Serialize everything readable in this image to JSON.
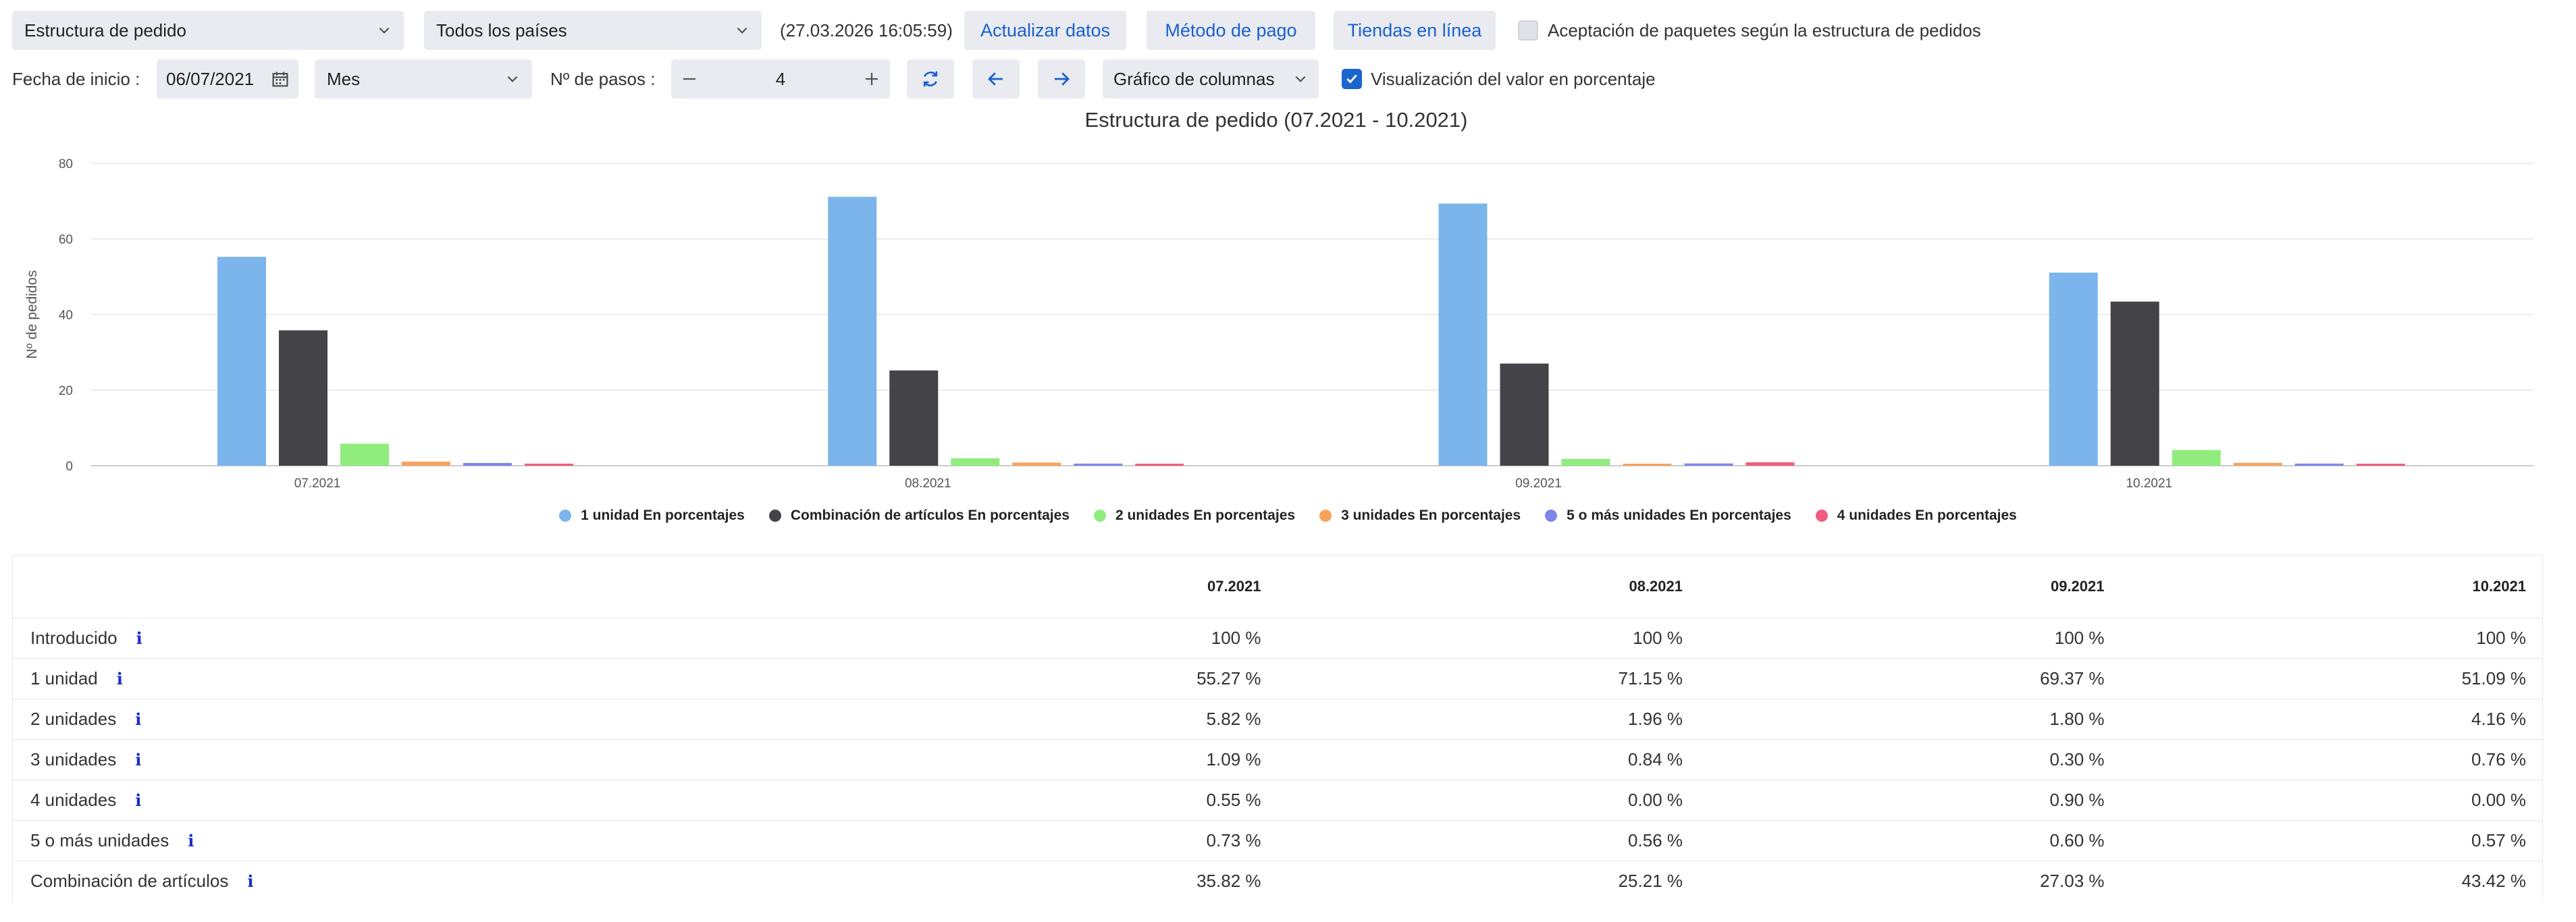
{
  "toolbar": {
    "report_select": "Estructura de pedido",
    "country_select": "Todos los países",
    "timestamp": "(27.03.2026 16:05:59)",
    "refresh_label": "Actualizar datos",
    "payment_label": "Método de pago",
    "shops_label": "Tiendas en línea",
    "package_acceptance_label": "Aceptación de paquetes según la estructura de pedidos",
    "package_acceptance_checked": false
  },
  "filters": {
    "start_date_label": "Fecha de inicio :",
    "start_date_value": "06/07/2021",
    "period_select": "Mes",
    "steps_label": "Nº de pasos :",
    "steps_value": "4",
    "chart_type_select": "Gráfico de columnas",
    "percent_view_label": "Visualización del valor en porcentaje",
    "percent_view_checked": true
  },
  "colors": {
    "blue": "#7cb5ec",
    "dark": "#434348",
    "green": "#90ed7d",
    "orange": "#f7a35c",
    "purple": "#8085e9",
    "pink": "#f15c80",
    "accent": "#1a5fd0"
  },
  "chart_data": {
    "type": "bar",
    "title": "Estructura de pedido (07.2021 - 10.2021)",
    "ylabel": "Nº de pedidos",
    "xlabel": "",
    "ylim": [
      0,
      80
    ],
    "yticks": [
      0,
      20,
      40,
      60,
      80
    ],
    "categories": [
      "07.2021",
      "08.2021",
      "09.2021",
      "10.2021"
    ],
    "series": [
      {
        "name": "1 unidad En porcentajes",
        "color": "#7cb5ec",
        "values": [
          55.27,
          71.15,
          69.37,
          51.09
        ]
      },
      {
        "name": "Combinación de artículos En porcentajes",
        "color": "#434348",
        "values": [
          35.82,
          25.21,
          27.03,
          43.42
        ]
      },
      {
        "name": "2 unidades En porcentajes",
        "color": "#90ed7d",
        "values": [
          5.82,
          1.96,
          1.8,
          4.16
        ]
      },
      {
        "name": "3 unidades En porcentajes",
        "color": "#f7a35c",
        "values": [
          1.09,
          0.84,
          0.3,
          0.76
        ]
      },
      {
        "name": "5 o más unidades En porcentajes",
        "color": "#8085e9",
        "values": [
          0.73,
          0.56,
          0.6,
          0.57
        ]
      },
      {
        "name": "4 unidades En porcentajes",
        "color": "#f15c80",
        "values": [
          0.55,
          0.0,
          0.9,
          0.0
        ]
      }
    ]
  },
  "table": {
    "headers": [
      "",
      "07.2021",
      "08.2021",
      "09.2021",
      "10.2021"
    ],
    "rows": [
      {
        "label": "Introducido",
        "values": [
          "100 %",
          "100 %",
          "100 %",
          "100 %"
        ]
      },
      {
        "label": "1 unidad",
        "values": [
          "55.27 %",
          "71.15 %",
          "69.37 %",
          "51.09 %"
        ]
      },
      {
        "label": "2 unidades",
        "values": [
          "5.82 %",
          "1.96 %",
          "1.80 %",
          "4.16 %"
        ]
      },
      {
        "label": "3 unidades",
        "values": [
          "1.09 %",
          "0.84 %",
          "0.30 %",
          "0.76 %"
        ]
      },
      {
        "label": "4 unidades",
        "values": [
          "0.55 %",
          "0.00 %",
          "0.90 %",
          "0.00 %"
        ]
      },
      {
        "label": "5 o más unidades",
        "values": [
          "0.73 %",
          "0.56 %",
          "0.60 %",
          "0.57 %"
        ]
      },
      {
        "label": "Combinación de artículos",
        "values": [
          "35.82 %",
          "25.21 %",
          "27.03 %",
          "43.42 %"
        ]
      }
    ],
    "info_symbol": "i"
  }
}
